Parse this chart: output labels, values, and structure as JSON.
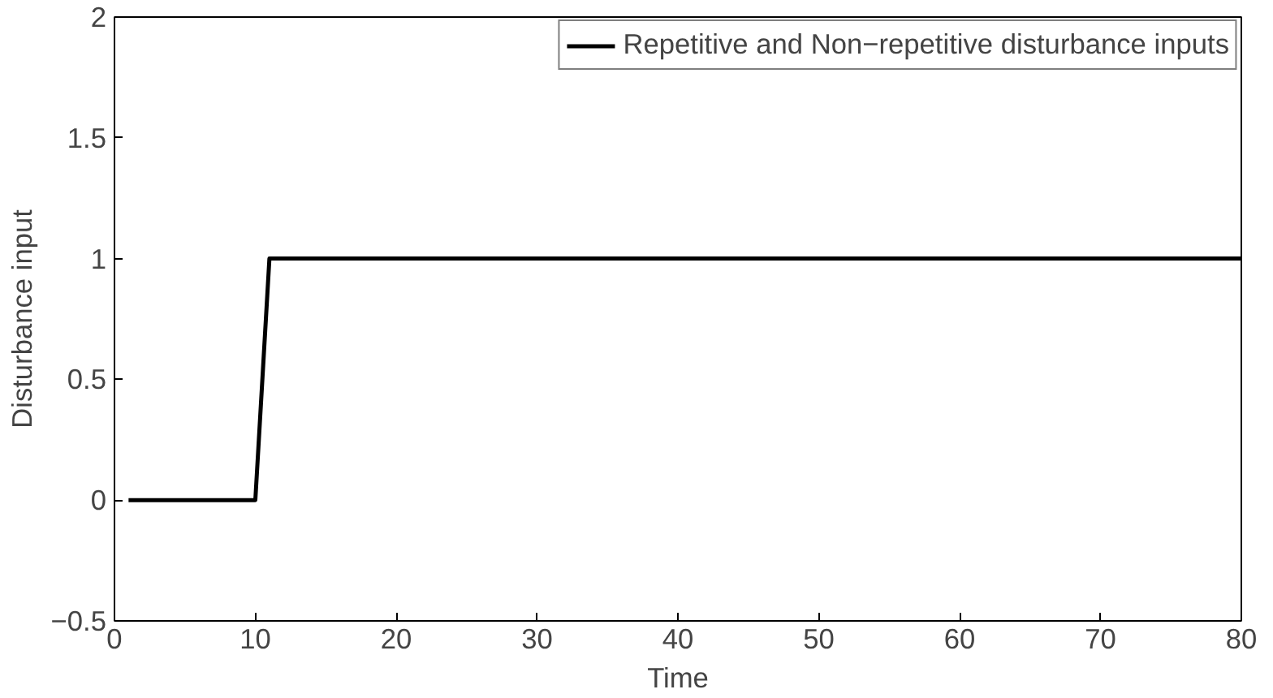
{
  "chart_data": {
    "type": "line",
    "xlabel": "Time",
    "ylabel": "Disturbance input",
    "x": [
      1,
      10,
      11,
      80
    ],
    "series": [
      {
        "name": "Repetitive and Non−repetitive disturbance inputs",
        "color": "#000000",
        "values": [
          0,
          0,
          1,
          1
        ]
      }
    ],
    "xlim": [
      0,
      80
    ],
    "ylim": [
      -0.5,
      2
    ],
    "xticks": [
      0,
      10,
      20,
      30,
      40,
      50,
      60,
      70,
      80
    ],
    "yticks": [
      {
        "value": -0.5,
        "label": "−0.5"
      },
      0,
      0.5,
      1,
      1.5,
      2
    ],
    "grid": false,
    "legend": "top right",
    "line_style": "solid",
    "marker": "none"
  }
}
